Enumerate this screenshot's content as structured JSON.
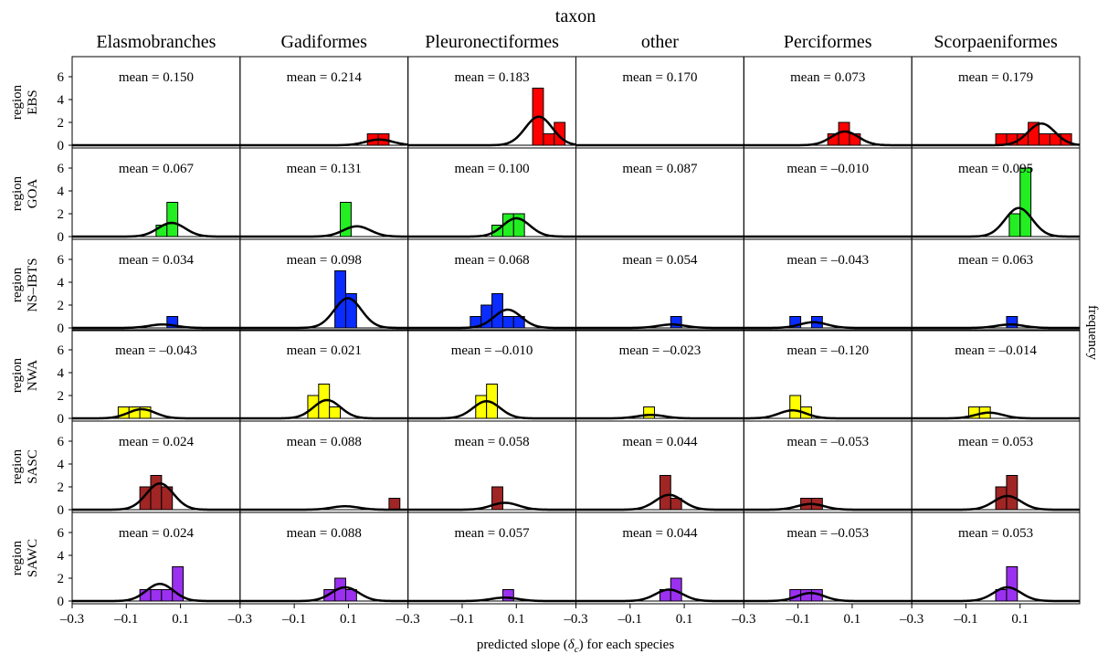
{
  "chart_data": {
    "type": "histogram-grid",
    "title": "",
    "column_header": "taxon",
    "columns": [
      "Elasmobranches",
      "Gadiformes",
      "Pleuronectiformes",
      "other",
      "Perciformes",
      "Scorpaeniformes"
    ],
    "row_header": "region",
    "rows": [
      {
        "name": "EBS",
        "color": "#ff0000"
      },
      {
        "name": "GOA",
        "color": "#22ee22"
      },
      {
        "name": "NS–IBTS",
        "color": "#0a2cff"
      },
      {
        "name": "NWA",
        "color": "#ffff00"
      },
      {
        "name": "SASC",
        "color": "#a02525"
      },
      {
        "name": "SAWC",
        "color": "#9b30f0"
      }
    ],
    "xlabel_prefix": "predicted slope (",
    "xlabel_symbol": "δ",
    "xlabel_subscript": "c",
    "xlabel_suffix": ") for each species",
    "ylabel": "frequency",
    "mean_prefix": "mean = ",
    "xlim": [
      -0.3,
      0.32
    ],
    "ylim": [
      0,
      7.4
    ],
    "xticks": [
      -0.3,
      -0.1,
      0.1
    ],
    "xtick_labels": [
      "–0.3",
      "–0.1",
      "0.1"
    ],
    "yticks": [
      0,
      2,
      4,
      6
    ],
    "ytick_labels": [
      "0",
      "2",
      "4",
      "6"
    ],
    "bin_width": 0.04,
    "panels": [
      [
        {
          "mean": "0.150",
          "bins": [],
          "curve_peak": 0
        },
        {
          "mean": "0.214",
          "bins": [
            [
              0.19,
              1
            ],
            [
              0.23,
              1
            ]
          ],
          "curve_peak": 0.5
        },
        {
          "mean": "0.183",
          "bins": [
            [
              0.18,
              5
            ],
            [
              0.22,
              1
            ],
            [
              0.26,
              2
            ]
          ],
          "curve_peak": 2.5
        },
        {
          "mean": "0.170",
          "bins": [],
          "curve_peak": 0
        },
        {
          "mean": "0.073",
          "bins": [
            [
              0.03,
              1
            ],
            [
              0.07,
              2
            ],
            [
              0.11,
              1
            ]
          ],
          "curve_peak": 1.2
        },
        {
          "mean": "0.179",
          "bins": [
            [
              0.03,
              1
            ],
            [
              0.07,
              1
            ],
            [
              0.11,
              1
            ],
            [
              0.15,
              2
            ],
            [
              0.19,
              1
            ],
            [
              0.23,
              1
            ],
            [
              0.27,
              1
            ]
          ],
          "curve_peak": 1.9
        }
      ],
      [
        {
          "mean": "0.067",
          "bins": [
            [
              0.03,
              1
            ],
            [
              0.07,
              3
            ]
          ],
          "curve_peak": 1.2
        },
        {
          "mean": "0.131",
          "bins": [
            [
              0.09,
              3
            ]
          ],
          "curve_peak": 0.9
        },
        {
          "mean": "0.100",
          "bins": [
            [
              0.03,
              1
            ],
            [
              0.07,
              2
            ],
            [
              0.11,
              2
            ]
          ],
          "curve_peak": 1.6
        },
        {
          "mean": "0.087",
          "bins": [],
          "curve_peak": 0
        },
        {
          "mean": "–0.010",
          "bins": [],
          "curve_peak": 0
        },
        {
          "mean": "0.095",
          "bins": [
            [
              0.08,
              2
            ],
            [
              0.12,
              6
            ]
          ],
          "curve_peak": 2.5
        }
      ],
      [
        {
          "mean": "0.034",
          "bins": [
            [
              0.07,
              1
            ]
          ],
          "curve_peak": 0.3
        },
        {
          "mean": "0.098",
          "bins": [
            [
              0.07,
              5
            ],
            [
              0.11,
              3
            ]
          ],
          "curve_peak": 2.6
        },
        {
          "mean": "0.068",
          "bins": [
            [
              -0.05,
              1
            ],
            [
              -0.01,
              2
            ],
            [
              0.03,
              3
            ],
            [
              0.07,
              1
            ],
            [
              0.11,
              1
            ]
          ],
          "curve_peak": 1.6
        },
        {
          "mean": "0.054",
          "bins": [
            [
              0.07,
              1
            ]
          ],
          "curve_peak": 0.3
        },
        {
          "mean": "–0.043",
          "bins": [
            [
              -0.11,
              1
            ],
            [
              -0.03,
              1
            ]
          ],
          "curve_peak": 0.5
        },
        {
          "mean": "0.063",
          "bins": [
            [
              0.07,
              1
            ]
          ],
          "curve_peak": 0.3
        }
      ],
      [
        {
          "mean": "–0.043",
          "bins": [
            [
              -0.11,
              1
            ],
            [
              -0.07,
              1
            ],
            [
              -0.03,
              1
            ]
          ],
          "curve_peak": 0.8
        },
        {
          "mean": "0.021",
          "bins": [
            [
              -0.03,
              2
            ],
            [
              0.01,
              3
            ],
            [
              0.05,
              1
            ]
          ],
          "curve_peak": 1.6
        },
        {
          "mean": "–0.010",
          "bins": [
            [
              -0.03,
              2
            ],
            [
              0.01,
              3
            ]
          ],
          "curve_peak": 1.5
        },
        {
          "mean": "–0.023",
          "bins": [
            [
              -0.03,
              1
            ]
          ],
          "curve_peak": 0.3
        },
        {
          "mean": "–0.120",
          "bins": [
            [
              -0.11,
              2
            ],
            [
              -0.07,
              1
            ]
          ],
          "curve_peak": 0.7
        },
        {
          "mean": "–0.014",
          "bins": [
            [
              -0.07,
              1
            ],
            [
              -0.03,
              1
            ]
          ],
          "curve_peak": 0.5
        }
      ],
      [
        {
          "mean": "0.024",
          "bins": [
            [
              -0.03,
              2
            ],
            [
              0.01,
              3
            ],
            [
              0.05,
              2
            ]
          ],
          "curve_peak": 2.3
        },
        {
          "mean": "0.088",
          "bins": [
            [
              0.27,
              1
            ]
          ],
          "curve_peak": 0.3
        },
        {
          "mean": "0.058",
          "bins": [
            [
              0.03,
              2
            ]
          ],
          "curve_peak": 0.6
        },
        {
          "mean": "0.044",
          "bins": [
            [
              0.03,
              3
            ],
            [
              0.07,
              1
            ]
          ],
          "curve_peak": 1.3
        },
        {
          "mean": "–0.053",
          "bins": [
            [
              -0.07,
              1
            ],
            [
              -0.03,
              1
            ]
          ],
          "curve_peak": 0.5
        },
        {
          "mean": "0.053",
          "bins": [
            [
              0.03,
              2
            ],
            [
              0.07,
              3
            ]
          ],
          "curve_peak": 1.2
        }
      ],
      [
        {
          "mean": "0.024",
          "bins": [
            [
              -0.03,
              1
            ],
            [
              0.01,
              1
            ],
            [
              0.05,
              1
            ],
            [
              0.09,
              3
            ]
          ],
          "curve_peak": 1.5
        },
        {
          "mean": "0.088",
          "bins": [
            [
              0.03,
              1
            ],
            [
              0.07,
              2
            ],
            [
              0.11,
              1
            ]
          ],
          "curve_peak": 1.2
        },
        {
          "mean": "0.057",
          "bins": [
            [
              0.07,
              1
            ]
          ],
          "curve_peak": 0.3
        },
        {
          "mean": "0.044",
          "bins": [
            [
              0.03,
              1
            ],
            [
              0.07,
              2
            ]
          ],
          "curve_peak": 1.0
        },
        {
          "mean": "–0.053",
          "bins": [
            [
              -0.11,
              1
            ],
            [
              -0.07,
              1
            ],
            [
              -0.03,
              1
            ]
          ],
          "curve_peak": 0.7
        },
        {
          "mean": "0.053",
          "bins": [
            [
              0.03,
              1
            ],
            [
              0.07,
              3
            ]
          ],
          "curve_peak": 1.2
        }
      ]
    ],
    "curve_sd": 0.05,
    "grid": false,
    "legend": "none"
  }
}
